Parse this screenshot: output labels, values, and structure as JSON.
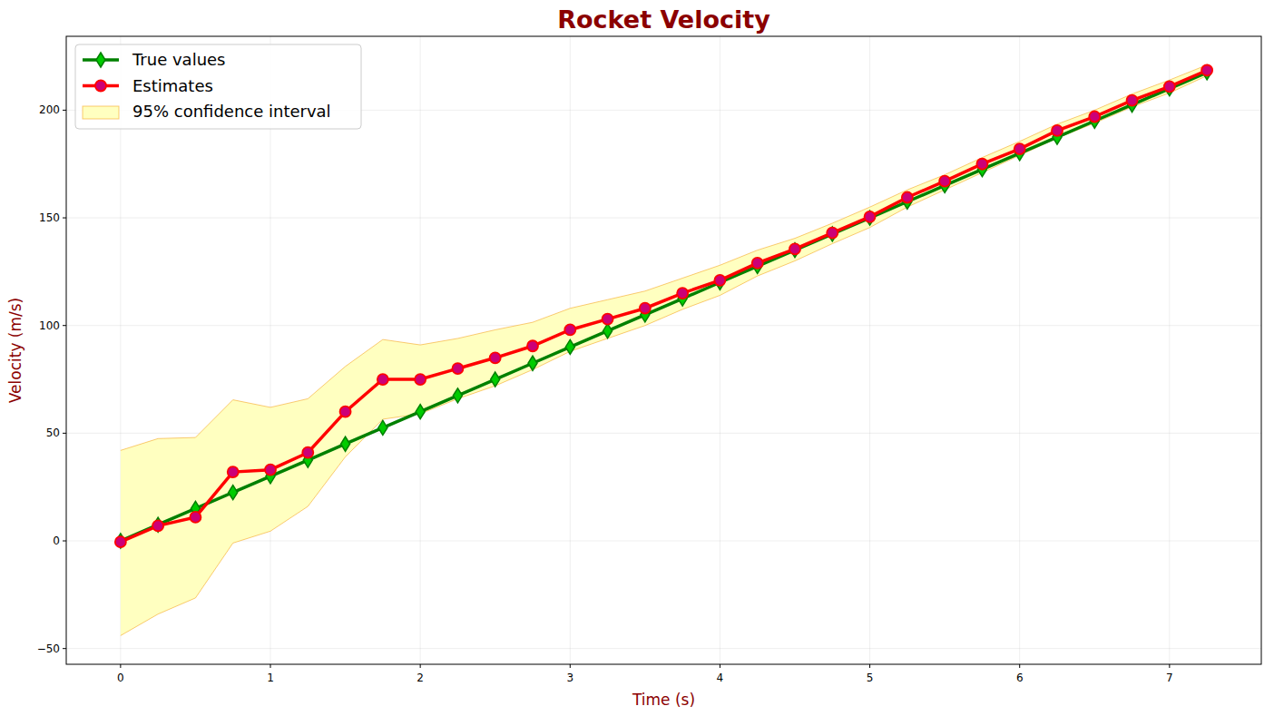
{
  "chart_data": {
    "type": "line",
    "title": "Rocket Velocity",
    "x_label": "Time (s)",
    "y_label": "Velocity (m/s)",
    "x": [
      0,
      0.25,
      0.5,
      0.75,
      1,
      1.25,
      1.5,
      1.75,
      2,
      2.25,
      2.5,
      2.75,
      3,
      3.25,
      3.5,
      3.75,
      4,
      4.25,
      4.5,
      4.75,
      5,
      5.25,
      5.5,
      5.75,
      6,
      6.25,
      6.5,
      6.75,
      7,
      7.25
    ],
    "series": [
      {
        "name": "True values",
        "color": "#008000",
        "marker": "diamond",
        "line_style": "solid",
        "values": [
          0,
          7.5,
          15,
          22.5,
          30,
          37.5,
          45,
          52.5,
          60,
          67.5,
          75,
          82.5,
          90,
          97.5,
          105,
          112.5,
          120,
          127.5,
          135,
          142.5,
          150,
          157.5,
          165,
          172.5,
          180,
          187.5,
          195,
          202.5,
          210,
          217.5
        ]
      },
      {
        "name": "Estimates",
        "color": "#ff0000",
        "marker": "circle",
        "line_style": "solid",
        "values": [
          -0.5,
          7,
          11,
          32,
          33,
          41,
          60,
          75,
          75,
          80,
          85,
          90.5,
          98,
          103,
          108,
          115,
          121,
          129,
          135.5,
          143,
          150.5,
          159.5,
          167,
          175,
          182,
          190.5,
          197,
          204.5,
          211,
          218.5
        ]
      },
      {
        "name": "95% confidence interval",
        "type": "area",
        "color": "#ffffc0",
        "upper": [
          42,
          47.5,
          48,
          65.5,
          62,
          66,
          81,
          93.5,
          91,
          94,
          98,
          101.5,
          108,
          112,
          116,
          122,
          128,
          135,
          140.5,
          147.5,
          155,
          163,
          170,
          178,
          185.5,
          193.5,
          200,
          207.5,
          214,
          221
        ],
        "lower": [
          -44,
          -34,
          -26.5,
          -1,
          4.5,
          16,
          39,
          56.5,
          59,
          66,
          72,
          79.5,
          88,
          94,
          100,
          107.5,
          114,
          123,
          130,
          138,
          145.5,
          155,
          163,
          171,
          179,
          187,
          194,
          201.5,
          208,
          216
        ]
      }
    ],
    "xlim": [
      -0.3625,
      7.6125
    ],
    "ylim": [
      -57.3,
      234.3
    ],
    "xticks": [
      0,
      1,
      2,
      3,
      4,
      5,
      6,
      7
    ],
    "yticks": [
      {
        "value": -50,
        "label": "−50"
      },
      0,
      50,
      100,
      150,
      200
    ],
    "grid": true,
    "legend": "upper left"
  }
}
